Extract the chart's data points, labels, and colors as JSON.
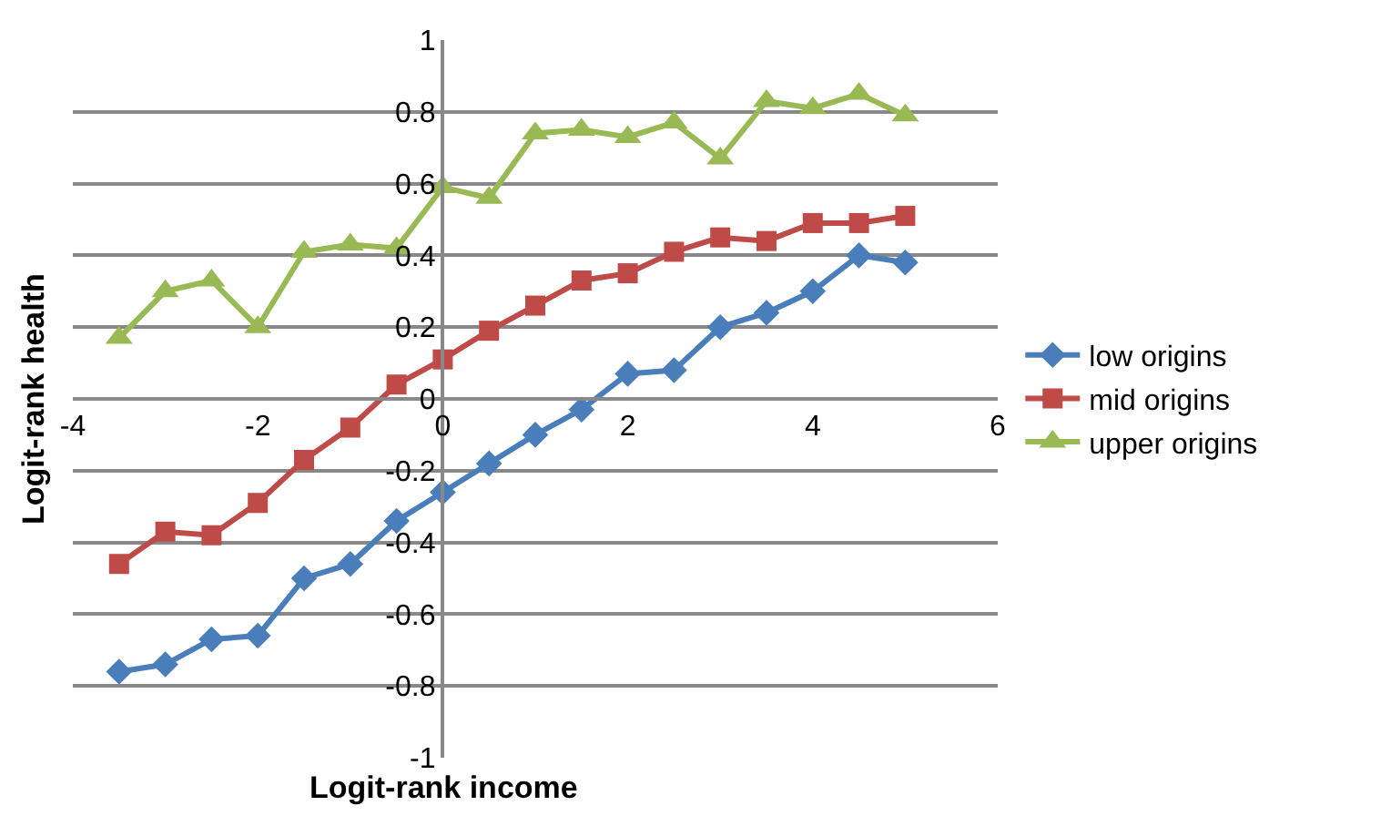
{
  "chart_data": {
    "type": "line",
    "xlabel": "Logit-rank income",
    "ylabel": "Logit-rank health",
    "x": [
      -3.5,
      -3,
      -2.5,
      -2,
      -1.5,
      -1,
      -0.5,
      0,
      0.5,
      1,
      1.5,
      2,
      2.5,
      3,
      3.5,
      4,
      4.5,
      5
    ],
    "series": [
      {
        "name": "low origins",
        "color": "#4a7ebb",
        "marker": "diamond",
        "values": [
          -0.76,
          -0.74,
          -0.67,
          -0.66,
          -0.5,
          -0.46,
          -0.34,
          -0.26,
          -0.18,
          -0.1,
          -0.03,
          0.07,
          0.08,
          0.2,
          0.24,
          0.3,
          0.4,
          0.38
        ]
      },
      {
        "name": "mid origins",
        "color": "#be4b48",
        "marker": "square",
        "values": [
          -0.46,
          -0.37,
          -0.38,
          -0.29,
          -0.17,
          -0.08,
          0.04,
          0.11,
          0.19,
          0.26,
          0.33,
          0.35,
          0.41,
          0.45,
          0.44,
          0.49,
          0.49,
          0.51
        ]
      },
      {
        "name": "upper origins",
        "color": "#98b954",
        "marker": "triangle",
        "values": [
          0.17,
          0.3,
          0.33,
          0.2,
          0.41,
          0.43,
          0.42,
          0.59,
          0.56,
          0.74,
          0.75,
          0.73,
          0.77,
          0.67,
          0.83,
          0.81,
          0.85,
          0.79
        ]
      }
    ],
    "xlim": [
      -4,
      6
    ],
    "xticks": [
      -4,
      -2,
      0,
      2,
      4,
      6
    ],
    "ylim": [
      -1,
      1
    ],
    "yticks": [
      -1,
      -0.8,
      -0.6,
      -0.4,
      -0.2,
      0,
      0.2,
      0.4,
      0.6,
      0.8,
      1
    ],
    "grid": "y",
    "legend": "right",
    "line_style": "solid"
  }
}
